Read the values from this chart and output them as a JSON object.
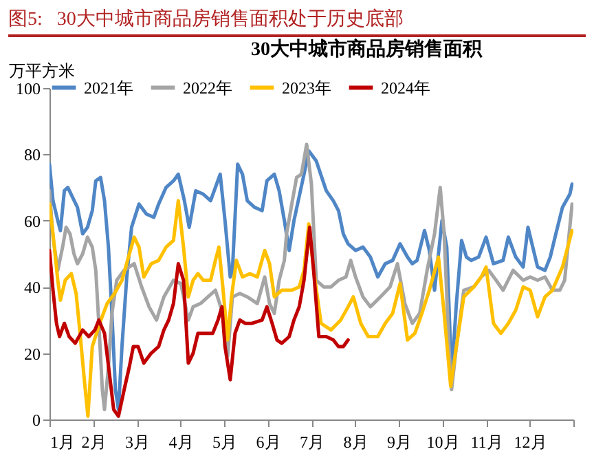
{
  "chart_data": {
    "type": "line",
    "title": "图5:   30大中城市商品房销售面积处于历史底部",
    "subtitle": "30大中城市商品房销售面积",
    "ylabel": "万平方米",
    "xlim": [
      1,
      13
    ],
    "xticks": [
      {
        "value": 1,
        "label": "1月"
      },
      {
        "value": 2,
        "label": "2月"
      },
      {
        "value": 3,
        "label": "3月"
      },
      {
        "value": 4,
        "label": "4月"
      },
      {
        "value": 5,
        "label": "5月"
      },
      {
        "value": 6,
        "label": "6月"
      },
      {
        "value": 7,
        "label": "7月"
      },
      {
        "value": 8,
        "label": "8月"
      },
      {
        "value": 9,
        "label": "9月"
      },
      {
        "value": 10,
        "label": "10月"
      },
      {
        "value": 11,
        "label": "11月"
      },
      {
        "value": 12,
        "label": "12月"
      },
      {
        "value": 13,
        "label": null
      }
    ],
    "ylim": [
      0,
      100
    ],
    "yticks": [
      0,
      20,
      40,
      60,
      80,
      100
    ],
    "grid": false,
    "legend": "top",
    "marker": "none",
    "line_style": "solid",
    "series": [
      {
        "name": "2021年",
        "color": "#4f86c6",
        "x": [
          1.0,
          1.08,
          1.19,
          1.25,
          1.34,
          1.42,
          1.53,
          1.64,
          1.76,
          1.87,
          1.98,
          2.06,
          2.17,
          2.26,
          2.35,
          2.43,
          2.51,
          2.58,
          2.66,
          2.77,
          2.88,
          3.05,
          3.22,
          3.39,
          3.5,
          3.67,
          3.84,
          3.95,
          4.09,
          4.2,
          4.35,
          4.52,
          4.69,
          4.8,
          4.91,
          5.02,
          5.14,
          5.19,
          5.31,
          5.42,
          5.53,
          5.7,
          5.87,
          5.98,
          6.15,
          6.26,
          6.38,
          6.49,
          6.6,
          6.83,
          6.94,
          7.11,
          7.34,
          7.5,
          7.62,
          7.73,
          7.84,
          8.01,
          8.18,
          8.35,
          8.52,
          8.69,
          8.86,
          9.03,
          9.2,
          9.31,
          9.42,
          9.59,
          9.7,
          9.82,
          9.87,
          9.99,
          10.1,
          10.21,
          10.32,
          10.44,
          10.55,
          10.66,
          10.83,
          11.0,
          11.17,
          11.39,
          11.51,
          11.68,
          11.85,
          11.96,
          12.07,
          12.18,
          12.35,
          12.47,
          12.58,
          12.75,
          12.92,
          12.97
        ],
        "values": [
          77,
          66,
          60,
          57,
          69,
          70,
          67,
          64,
          56,
          58,
          63,
          72,
          73,
          66,
          52,
          32,
          9,
          3,
          22,
          43,
          58,
          65,
          62,
          61,
          65,
          70,
          72,
          74,
          66,
          58,
          69,
          68,
          66,
          70,
          74,
          60,
          43,
          45,
          77,
          74,
          66,
          64,
          63,
          72,
          74,
          69,
          60,
          51,
          60,
          74,
          81,
          78,
          69,
          66,
          63,
          56,
          53,
          51,
          52,
          49,
          43,
          47,
          48,
          53,
          49,
          47,
          48,
          57,
          51,
          39,
          45,
          60,
          52,
          13,
          35,
          54,
          49,
          48,
          49,
          55,
          47,
          48,
          55,
          49,
          46,
          58,
          52,
          46,
          45,
          49,
          55,
          64,
          68,
          71
        ]
      },
      {
        "name": "2022年",
        "color": "#a5a5a5",
        "x": [
          1.0,
          1.08,
          1.19,
          1.3,
          1.38,
          1.47,
          1.56,
          1.64,
          1.76,
          1.87,
          1.98,
          2.06,
          2.13,
          2.21,
          2.26,
          2.35,
          2.43,
          2.54,
          2.71,
          2.94,
          3.11,
          3.28,
          3.45,
          3.62,
          3.84,
          4.01,
          4.18,
          4.29,
          4.46,
          4.63,
          4.8,
          4.97,
          5.08,
          5.19,
          5.36,
          5.53,
          5.76,
          5.93,
          6.04,
          6.15,
          6.26,
          6.38,
          6.43,
          6.55,
          6.66,
          6.77,
          6.89,
          7.0,
          7.11,
          7.28,
          7.45,
          7.62,
          7.79,
          7.9,
          8.01,
          8.18,
          8.35,
          8.58,
          8.8,
          8.97,
          9.14,
          9.31,
          9.48,
          9.65,
          9.82,
          9.95,
          10.04,
          10.15,
          10.21,
          10.32,
          10.49,
          10.72,
          10.89,
          11.06,
          11.23,
          11.39,
          11.62,
          11.85,
          12.01,
          12.18,
          12.35,
          12.52,
          12.69,
          12.8,
          12.97
        ],
        "values": [
          69,
          55,
          45,
          52,
          58,
          56,
          50,
          47,
          50,
          55,
          52,
          45,
          29,
          9,
          3,
          16,
          32,
          42,
          45,
          47,
          40,
          34,
          30,
          37,
          42,
          41,
          30,
          34,
          35,
          37,
          39,
          32,
          19,
          37,
          38,
          37,
          35,
          43,
          35,
          32,
          42,
          48,
          56,
          65,
          73,
          74,
          83,
          71,
          42,
          40,
          40,
          42,
          43,
          48,
          43,
          37,
          34,
          37,
          40,
          47,
          35,
          29,
          32,
          45,
          56,
          70,
          56,
          22,
          9,
          22,
          39,
          40,
          43,
          45,
          42,
          39,
          45,
          42,
          43,
          42,
          43,
          39,
          39,
          42,
          65
        ]
      },
      {
        "name": "2023年",
        "color": "#ffc000",
        "x": [
          1.0,
          1.08,
          1.19,
          1.25,
          1.36,
          1.5,
          1.61,
          1.7,
          1.79,
          1.88,
          1.98,
          2.15,
          2.32,
          2.49,
          2.66,
          2.83,
          2.94,
          3.05,
          3.16,
          3.33,
          3.5,
          3.67,
          3.84,
          3.95,
          4.07,
          4.18,
          4.29,
          4.4,
          4.52,
          4.69,
          4.8,
          4.88,
          4.97,
          5.08,
          5.17,
          5.28,
          5.42,
          5.59,
          5.76,
          5.93,
          6.04,
          6.15,
          6.32,
          6.55,
          6.72,
          6.83,
          6.94,
          7.05,
          7.22,
          7.45,
          7.67,
          7.84,
          7.96,
          8.13,
          8.3,
          8.52,
          8.69,
          8.86,
          9.03,
          9.2,
          9.37,
          9.53,
          9.7,
          9.91,
          10.04,
          10.19,
          10.32,
          10.49,
          10.72,
          10.89,
          11.0,
          11.17,
          11.34,
          11.51,
          11.68,
          11.85,
          12.01,
          12.18,
          12.35,
          12.52,
          12.75,
          12.97
        ],
        "values": [
          65,
          56,
          42,
          36,
          42,
          44,
          38,
          26,
          13,
          1,
          22,
          29,
          35,
          38,
          42,
          50,
          55,
          52,
          43,
          47,
          48,
          52,
          54,
          66,
          52,
          37,
          42,
          44,
          42,
          42,
          48,
          52,
          40,
          24,
          37,
          48,
          43,
          44,
          43,
          51,
          47,
          37,
          39,
          39,
          40,
          45,
          59,
          45,
          29,
          27,
          30,
          34,
          37,
          29,
          25,
          25,
          29,
          32,
          41,
          24,
          26,
          32,
          39,
          49,
          32,
          10,
          22,
          37,
          40,
          43,
          46,
          29,
          26,
          29,
          33,
          40,
          39,
          31,
          37,
          39,
          46,
          57
        ]
      },
      {
        "name": "2024年",
        "color": "#c00000",
        "x": [
          1.0,
          1.08,
          1.16,
          1.23,
          1.34,
          1.45,
          1.59,
          1.76,
          1.9,
          2.04,
          2.13,
          2.26,
          2.38,
          2.47,
          2.58,
          2.71,
          2.83,
          2.92,
          3.03,
          3.16,
          3.33,
          3.5,
          3.62,
          3.73,
          3.84,
          3.95,
          4.07,
          4.18,
          4.29,
          4.4,
          4.57,
          4.74,
          4.86,
          4.95,
          5.02,
          5.14,
          5.25,
          5.36,
          5.48,
          5.64,
          5.87,
          5.98,
          6.1,
          6.21,
          6.32,
          6.49,
          6.6,
          6.72,
          6.83,
          6.96,
          7.05,
          7.17,
          7.34,
          7.5,
          7.62,
          7.73,
          7.84
        ],
        "values": [
          51,
          39,
          29,
          25,
          29,
          25,
          23,
          27,
          25,
          27,
          30,
          26,
          13,
          3,
          1,
          9,
          16,
          22,
          22,
          17,
          20,
          22,
          27,
          30,
          35,
          47,
          42,
          17,
          20,
          26,
          26,
          26,
          30,
          34,
          22,
          12,
          26,
          30,
          29,
          29,
          30,
          34,
          29,
          24,
          23,
          25,
          30,
          34,
          42,
          58,
          45,
          25,
          25,
          24,
          22,
          22,
          24
        ]
      }
    ]
  }
}
